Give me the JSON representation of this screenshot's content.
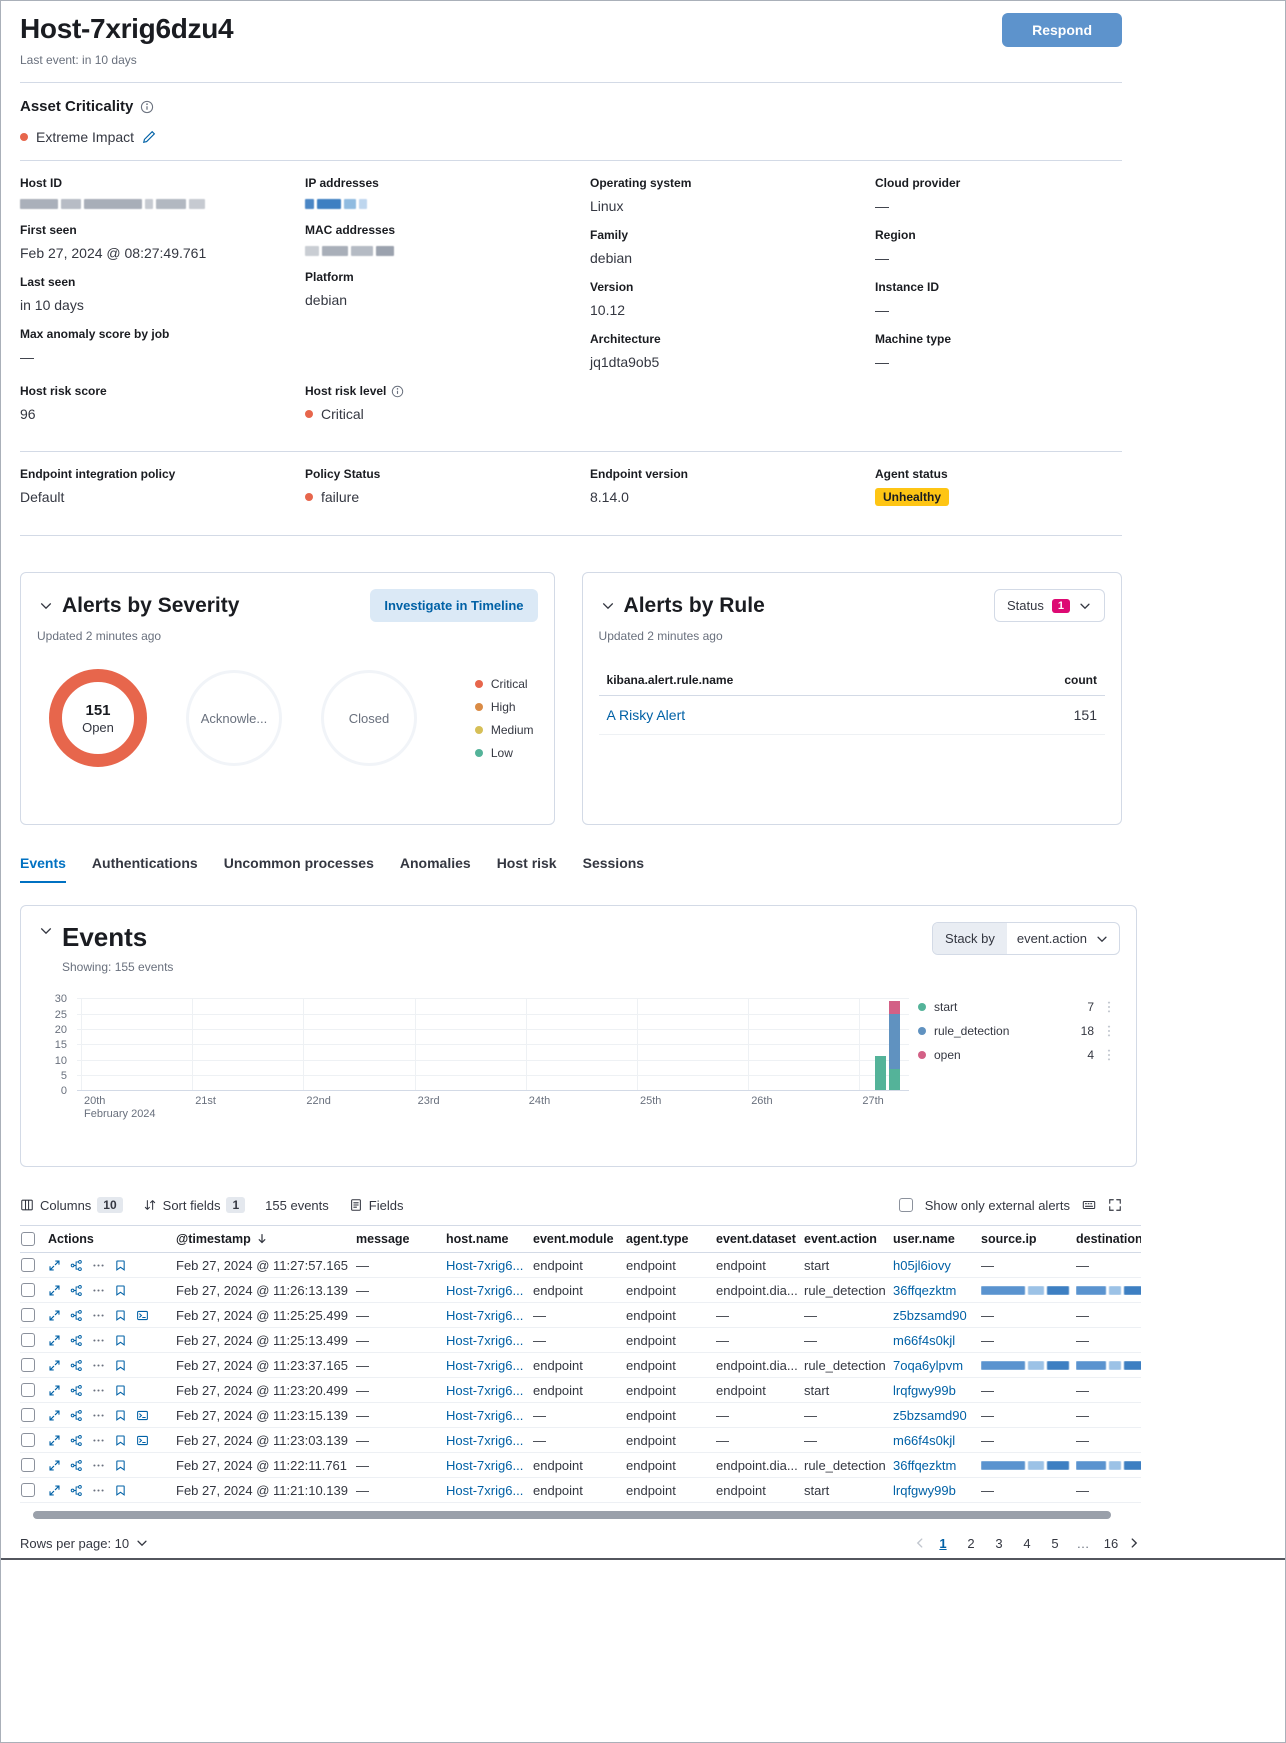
{
  "header": {
    "title": "Host-7xrig6dzu4",
    "last_event": "Last event: in 10 days",
    "respond_label": "Respond"
  },
  "asset_criticality": {
    "label": "Asset Criticality",
    "value": "Extreme Impact",
    "dot_color": "#e7664c"
  },
  "details": {
    "columns": [
      {
        "fields": [
          {
            "label": "Host ID",
            "type": "redacted",
            "style": "gray-long"
          },
          {
            "label": "First seen",
            "type": "text",
            "value": "Feb 27, 2024 @ 08:27:49.761"
          },
          {
            "label": "Last seen",
            "type": "text",
            "value": "in 10 days"
          },
          {
            "label": "Max anomaly score by job",
            "type": "text",
            "value": "—"
          }
        ]
      },
      {
        "fields": [
          {
            "label": "IP addresses",
            "type": "redacted",
            "style": "blue-short"
          },
          {
            "label": "MAC addresses",
            "type": "redacted",
            "style": "gray-mid"
          },
          {
            "label": "Platform",
            "type": "text",
            "value": "debian"
          }
        ]
      },
      {
        "fields": [
          {
            "label": "Operating system",
            "type": "text",
            "value": "Linux"
          },
          {
            "label": "Family",
            "type": "text",
            "value": "debian"
          },
          {
            "label": "Version",
            "type": "text",
            "value": "10.12"
          },
          {
            "label": "Architecture",
            "type": "text",
            "value": "jq1dta9ob5"
          }
        ]
      },
      {
        "fields": [
          {
            "label": "Cloud provider",
            "type": "text",
            "value": "—"
          },
          {
            "label": "Region",
            "type": "text",
            "value": "—"
          },
          {
            "label": "Instance ID",
            "type": "text",
            "value": "—"
          },
          {
            "label": "Machine type",
            "type": "text",
            "value": "—"
          }
        ]
      }
    ],
    "risk": [
      {
        "label": "Host risk score",
        "type": "text",
        "value": "96"
      },
      {
        "label": "Host risk level",
        "type": "dot",
        "value": "Critical",
        "dot_color": "#e7664c",
        "info": true
      }
    ],
    "endpoint": [
      {
        "label": "Endpoint integration policy",
        "type": "text",
        "value": "Default"
      },
      {
        "label": "Policy Status",
        "type": "dot",
        "value": "failure",
        "dot_color": "#e7664c"
      },
      {
        "label": "Endpoint version",
        "type": "text",
        "value": "8.14.0"
      },
      {
        "label": "Agent status",
        "type": "badge",
        "value": "Unhealthy"
      }
    ]
  },
  "alerts_by_severity": {
    "title": "Alerts by Severity",
    "updated": "Updated 2 minutes ago",
    "investigate_label": "Investigate in Timeline",
    "open_count": "151",
    "open_label": "Open",
    "acknowledged_label": "Acknowle...",
    "closed_label": "Closed",
    "legend": [
      {
        "label": "Critical",
        "color": "#E7664C"
      },
      {
        "label": "High",
        "color": "#DA8B45"
      },
      {
        "label": "Medium",
        "color": "#D6BF57"
      },
      {
        "label": "Low",
        "color": "#54B399"
      }
    ]
  },
  "alerts_by_rule": {
    "title": "Alerts by Rule",
    "updated": "Updated 2 minutes ago",
    "status_label": "Status",
    "status_badge": "1",
    "col_name": "kibana.alert.rule.name",
    "col_count": "count",
    "rows": [
      {
        "name": "A Risky Alert",
        "count": "151"
      }
    ]
  },
  "tabs": {
    "items": [
      "Events",
      "Authentications",
      "Uncommon processes",
      "Anomalies",
      "Host risk",
      "Sessions"
    ],
    "active": "Events"
  },
  "events_panel": {
    "title": "Events",
    "showing": "Showing: 155 events",
    "stack_by_label": "Stack by",
    "stack_by_value": "event.action"
  },
  "chart_data": {
    "type": "bar",
    "stacked": true,
    "title": "Events",
    "x_axis": {
      "tick_labels": [
        "20th",
        "21st",
        "22nd",
        "23rd",
        "24th",
        "25th",
        "26th",
        "27th"
      ],
      "sublabel": "February 2024"
    },
    "y_axis": {
      "ticks": [
        0,
        5,
        10,
        15,
        20,
        25,
        30
      ],
      "range": [
        0,
        30
      ]
    },
    "grid": true,
    "legend_position": "right",
    "series": [
      {
        "name": "start",
        "color": "#54B399",
        "legend_value": "7"
      },
      {
        "name": "rule_detection",
        "color": "#6092C0",
        "legend_value": "18"
      },
      {
        "name": "open",
        "color": "#D36086",
        "legend_value": "4"
      }
    ],
    "bars": [
      {
        "x_label": "27th",
        "segments": [
          {
            "series": "start",
            "value": 11
          }
        ]
      },
      {
        "x_label": "27th",
        "segments": [
          {
            "series": "start",
            "value": 7
          },
          {
            "series": "rule_detection",
            "value": 18
          },
          {
            "series": "open",
            "value": 4
          }
        ]
      }
    ]
  },
  "grid_toolbar": {
    "columns_label": "Columns",
    "columns_badge": "10",
    "sort_label": "Sort fields",
    "sort_badge": "1",
    "events_count": "155 events",
    "fields_label": "Fields",
    "external_label": "Show only external alerts"
  },
  "events_table": {
    "columns": [
      "Actions",
      "@timestamp",
      "message",
      "host.name",
      "event.module",
      "agent.type",
      "event.dataset",
      "event.action",
      "user.name",
      "source.ip",
      "destination"
    ],
    "sorted_column": "@timestamp",
    "sort_direction": "desc",
    "rows": [
      {
        "timestamp": "Feb 27, 2024 @ 11:27:57.165",
        "message": "—",
        "host": "Host-7xrig6...",
        "module": "endpoint",
        "agent": "endpoint",
        "dataset": "endpoint",
        "action": "start",
        "user": "h05jl6iovy",
        "source_ip": "—",
        "destination": "—",
        "source_redacted": false,
        "dest_redacted": false,
        "session_icon": false
      },
      {
        "timestamp": "Feb 27, 2024 @ 11:26:13.139",
        "message": "—",
        "host": "Host-7xrig6...",
        "module": "endpoint",
        "agent": "endpoint",
        "dataset": "endpoint.dia...",
        "action": "rule_detection",
        "user": "36ffqezktm",
        "source_ip": "",
        "destination": "",
        "source_redacted": true,
        "dest_redacted": true,
        "session_icon": false
      },
      {
        "timestamp": "Feb 27, 2024 @ 11:25:25.499",
        "message": "—",
        "host": "Host-7xrig6...",
        "module": "—",
        "agent": "endpoint",
        "dataset": "—",
        "action": "—",
        "user": "z5bzsamd90",
        "source_ip": "—",
        "destination": "—",
        "source_redacted": false,
        "dest_redacted": false,
        "session_icon": true
      },
      {
        "timestamp": "Feb 27, 2024 @ 11:25:13.499",
        "message": "—",
        "host": "Host-7xrig6...",
        "module": "—",
        "agent": "endpoint",
        "dataset": "—",
        "action": "—",
        "user": "m66f4s0kjl",
        "source_ip": "—",
        "destination": "—",
        "source_redacted": false,
        "dest_redacted": false,
        "session_icon": false
      },
      {
        "timestamp": "Feb 27, 2024 @ 11:23:37.165",
        "message": "—",
        "host": "Host-7xrig6...",
        "module": "endpoint",
        "agent": "endpoint",
        "dataset": "endpoint.dia...",
        "action": "rule_detection",
        "user": "7oqa6ylpvm",
        "source_ip": "",
        "destination": "",
        "source_redacted": true,
        "dest_redacted": true,
        "session_icon": false
      },
      {
        "timestamp": "Feb 27, 2024 @ 11:23:20.499",
        "message": "—",
        "host": "Host-7xrig6...",
        "module": "endpoint",
        "agent": "endpoint",
        "dataset": "endpoint",
        "action": "start",
        "user": "lrqfgwy99b",
        "source_ip": "—",
        "destination": "—",
        "source_redacted": false,
        "dest_redacted": false,
        "session_icon": false
      },
      {
        "timestamp": "Feb 27, 2024 @ 11:23:15.139",
        "message": "—",
        "host": "Host-7xrig6...",
        "module": "—",
        "agent": "endpoint",
        "dataset": "—",
        "action": "—",
        "user": "z5bzsamd90",
        "source_ip": "—",
        "destination": "—",
        "source_redacted": false,
        "dest_redacted": false,
        "session_icon": true
      },
      {
        "timestamp": "Feb 27, 2024 @ 11:23:03.139",
        "message": "—",
        "host": "Host-7xrig6...",
        "module": "—",
        "agent": "endpoint",
        "dataset": "—",
        "action": "—",
        "user": "m66f4s0kjl",
        "source_ip": "—",
        "destination": "—",
        "source_redacted": false,
        "dest_redacted": false,
        "session_icon": true
      },
      {
        "timestamp": "Feb 27, 2024 @ 11:22:11.761",
        "message": "—",
        "host": "Host-7xrig6...",
        "module": "endpoint",
        "agent": "endpoint",
        "dataset": "endpoint.dia...",
        "action": "rule_detection",
        "user": "36ffqezktm",
        "source_ip": "",
        "destination": "",
        "source_redacted": true,
        "dest_redacted": true,
        "session_icon": false
      },
      {
        "timestamp": "Feb 27, 2024 @ 11:21:10.139",
        "message": "—",
        "host": "Host-7xrig6...",
        "module": "endpoint",
        "agent": "endpoint",
        "dataset": "endpoint",
        "action": "start",
        "user": "lrqfgwy99b",
        "source_ip": "—",
        "destination": "—",
        "source_redacted": false,
        "dest_redacted": false,
        "session_icon": false
      }
    ]
  },
  "footer": {
    "rows_per_page_label": "Rows per page: 10",
    "pages": [
      "1",
      "2",
      "3",
      "4",
      "5",
      "…",
      "16"
    ],
    "active_page": "1"
  },
  "colors": {
    "accent": "#0061a6",
    "critical": "#E7664C",
    "warning_badge": "#FEC514",
    "status_badge": "#DD0A73"
  }
}
